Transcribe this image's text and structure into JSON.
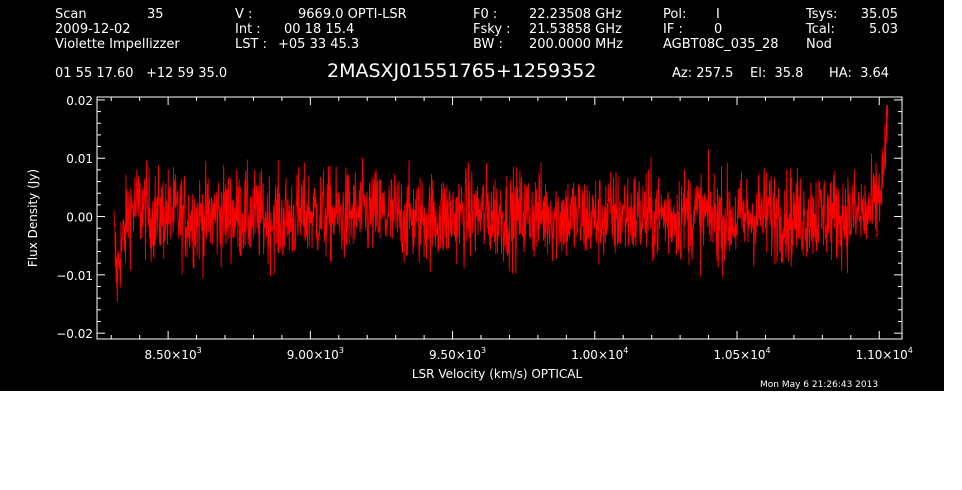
{
  "header": {
    "col1": [
      "Scan",
      "2009-12-02",
      "Violette Impellizzer"
    ],
    "scan_number": "35",
    "col2_labels": [
      "V   :",
      "Int  :",
      "LST :"
    ],
    "col2_values": [
      "9669.0 OPTI-LSR",
      "00 18 15.4",
      "+05 33 45.3"
    ],
    "col3_labels": [
      "F0   :",
      "Fsky :",
      "BW   :"
    ],
    "col3_values": [
      "22.23508 GHz",
      "21.53858 GHz",
      "200.0000 MHz"
    ],
    "col4_labels": [
      "Pol:",
      "IF :",
      "AGBT08C_035_28"
    ],
    "col4_values": [
      "I",
      "0",
      ""
    ],
    "col5_labels": [
      "Tsys:",
      "Tcal:",
      "Nod"
    ],
    "col5_values": [
      "35.05",
      "5.03",
      ""
    ],
    "coords": "01 55 17.60   +12 59 35.0",
    "source": "2MASXJ01551765+1259352",
    "az": "Az: 257.5",
    "el": "El:  35.8",
    "ha": "HA:  3.64"
  },
  "footer": {
    "datestamp": "Mon May  6 21:26:43 2013"
  },
  "colors": {
    "background": "#000000",
    "axes": "#ffffff",
    "trace": "#ff0000"
  },
  "chart_data": {
    "type": "line",
    "xlabel": "LSR Velocity (km/s) OPTICAL",
    "ylabel": "Flux Density (Jy)",
    "xlim": [
      8250,
      11080
    ],
    "ylim": [
      -0.021,
      0.0205
    ],
    "xticks": [
      {
        "value": 8500,
        "mant": "8.50",
        "exp": "3"
      },
      {
        "value": 9000,
        "mant": "9.00",
        "exp": "3"
      },
      {
        "value": 9500,
        "mant": "9.50",
        "exp": "3"
      },
      {
        "value": 10000,
        "mant": "1.00",
        "exp": "4"
      },
      {
        "value": 10500,
        "mant": "1.05",
        "exp": "4"
      },
      {
        "value": 11000,
        "mant": "1.10",
        "exp": "4"
      }
    ],
    "yticks": [
      {
        "value": 0.02,
        "label": "0.02"
      },
      {
        "value": 0.01,
        "label": "0.01"
      },
      {
        "value": 0.0,
        "label": "0.00"
      },
      {
        "value": -0.01,
        "label": "−0.01"
      },
      {
        "value": -0.02,
        "label": "−0.02"
      }
    ],
    "grid": false,
    "series": [
      {
        "color": "#ff0000",
        "description": "noisy spectrum, rms about 0.004 Jy",
        "x": [
          8310,
          8320,
          8330,
          8345,
          8360,
          8380,
          8400,
          8450,
          8500,
          8600,
          8700,
          8800,
          8900,
          9000,
          9100,
          9200,
          9300,
          9400,
          9500,
          9600,
          9700,
          9800,
          9900,
          10000,
          10100,
          10200,
          10300,
          10400,
          10500,
          10600,
          10700,
          10800,
          10900,
          10960,
          10990,
          11010,
          11020,
          11030
        ],
        "y": [
          -0.004,
          -0.011,
          -0.006,
          -0.004,
          0.001,
          0.0015,
          0.0015,
          0.0,
          0.0005,
          -0.0005,
          0.0005,
          0.0,
          -0.0005,
          0.0005,
          0.0,
          0.0005,
          0.0,
          -0.0005,
          0.0,
          0.0005,
          0.0,
          0.0005,
          0.0,
          -0.0005,
          0.0005,
          0.0,
          0.0005,
          0.0,
          -0.0005,
          0.0005,
          0.0,
          0.0005,
          0.0,
          0.0005,
          0.002,
          0.006,
          0.011,
          0.015
        ],
        "spread": [
          0.005,
          0.004,
          0.004,
          0.004,
          0.004,
          0.004,
          0.004,
          0.004,
          0.004,
          0.004,
          0.004,
          0.004,
          0.004,
          0.004,
          0.004,
          0.004,
          0.004,
          0.004,
          0.004,
          0.004,
          0.004,
          0.004,
          0.004,
          0.004,
          0.004,
          0.004,
          0.004,
          0.004,
          0.004,
          0.004,
          0.004,
          0.004,
          0.004,
          0.004,
          0.004,
          0.004,
          0.003,
          0.003
        ]
      }
    ]
  }
}
